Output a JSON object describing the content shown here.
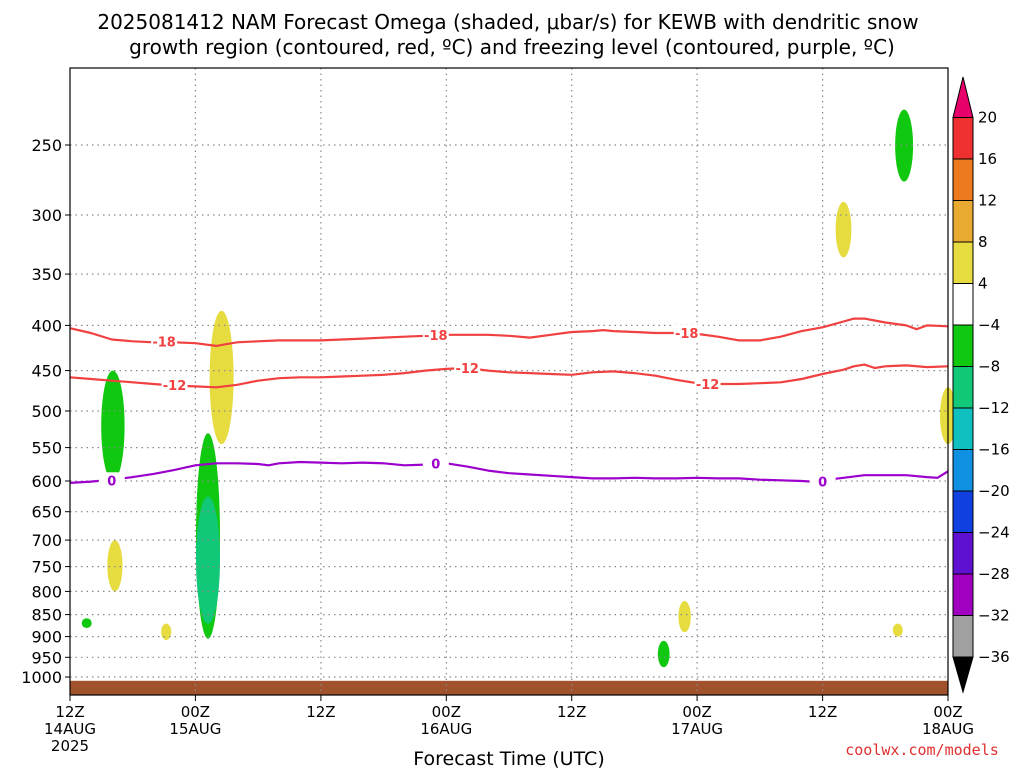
{
  "title_line1": "2025081412 NAM Forecast Omega (shaded, μbar/s) for KEWB with dendritic snow",
  "title_line2": "growth region (contoured, red, ºC) and freezing level (contoured, purple, ºC)",
  "credit": "coolwx.com/models",
  "chart_data": {
    "type": "contour",
    "title": "2025081412 NAM Forecast Omega (shaded, μbar/s) for KEWB with dendritic snow growth region (contoured, red, ºC) and freezing level (contoured, purple, ºC)",
    "xlabel": "Forecast Time (UTC)",
    "ylabel": "",
    "x_unit": "forecast hour",
    "xlim": [
      0,
      84
    ],
    "x_ticks": [
      {
        "x": 0,
        "lines": [
          "12Z",
          "14AUG",
          "2025"
        ]
      },
      {
        "x": 12,
        "lines": [
          "00Z",
          "15AUG"
        ]
      },
      {
        "x": 24,
        "lines": [
          "12Z"
        ]
      },
      {
        "x": 36,
        "lines": [
          "00Z",
          "16AUG"
        ]
      },
      {
        "x": 48,
        "lines": [
          "12Z"
        ]
      },
      {
        "x": 60,
        "lines": [
          "00Z",
          "17AUG"
        ]
      },
      {
        "x": 72,
        "lines": [
          "12Z"
        ]
      },
      {
        "x": 84,
        "lines": [
          "00Z",
          "18AUG"
        ]
      }
    ],
    "y_unit": "hPa",
    "y_scale": "log-pressure",
    "ylim": [
      1040,
      200
    ],
    "y_ticks": [
      250,
      300,
      350,
      400,
      450,
      500,
      550,
      600,
      650,
      700,
      750,
      800,
      850,
      900,
      950,
      1000
    ],
    "grid": true,
    "colorbar": {
      "label_values": [
        20,
        16,
        12,
        8,
        4,
        -4,
        -8,
        -12,
        -16,
        -20,
        -24,
        -28,
        -32,
        -36
      ],
      "colors": [
        "#e8006a",
        "#ee3030",
        "#ee7a20",
        "#e8aa30",
        "#e6dc40",
        "#ffffff",
        "#10c810",
        "#10c878",
        "#10c0c0",
        "#1090e0",
        "#1040e0",
        "#6010d0",
        "#a000c0",
        "#a0a0a0",
        "#000000"
      ]
    },
    "contours": [
      {
        "name": "-18 ºC (dendritic growth)",
        "color": "#f04040",
        "value": -18,
        "points": [
          [
            0,
            403
          ],
          [
            2,
            408
          ],
          [
            4,
            415
          ],
          [
            6,
            417
          ],
          [
            8,
            418
          ],
          [
            10,
            418
          ],
          [
            12,
            419
          ],
          [
            14,
            422
          ],
          [
            15,
            420
          ],
          [
            16,
            418
          ],
          [
            18,
            417
          ],
          [
            20,
            416
          ],
          [
            22,
            416
          ],
          [
            24,
            416
          ],
          [
            26,
            415
          ],
          [
            28,
            414
          ],
          [
            30,
            413
          ],
          [
            32,
            412
          ],
          [
            34,
            411
          ],
          [
            36,
            410
          ],
          [
            38,
            410
          ],
          [
            40,
            410
          ],
          [
            42,
            411
          ],
          [
            44,
            413
          ],
          [
            46,
            410
          ],
          [
            48,
            407
          ],
          [
            50,
            406
          ],
          [
            51,
            405
          ],
          [
            52,
            406
          ],
          [
            54,
            407
          ],
          [
            56,
            408
          ],
          [
            58,
            408
          ],
          [
            60,
            409
          ],
          [
            62,
            412
          ],
          [
            64,
            416
          ],
          [
            66,
            416
          ],
          [
            68,
            412
          ],
          [
            70,
            406
          ],
          [
            72,
            402
          ],
          [
            74,
            396
          ],
          [
            75,
            393
          ],
          [
            76,
            393
          ],
          [
            77,
            395
          ],
          [
            78,
            397
          ],
          [
            80,
            400
          ],
          [
            81,
            404
          ],
          [
            82,
            400
          ],
          [
            84,
            401
          ]
        ],
        "labels": [
          [
            9,
            417
          ],
          [
            35,
            410
          ],
          [
            59,
            408
          ]
        ]
      },
      {
        "name": "-12 ºC (dendritic growth)",
        "color": "#f04040",
        "value": -12,
        "points": [
          [
            0,
            458
          ],
          [
            2,
            460
          ],
          [
            4,
            462
          ],
          [
            6,
            464
          ],
          [
            8,
            466
          ],
          [
            10,
            468
          ],
          [
            12,
            469
          ],
          [
            14,
            470
          ],
          [
            16,
            467
          ],
          [
            18,
            462
          ],
          [
            20,
            459
          ],
          [
            22,
            458
          ],
          [
            24,
            458
          ],
          [
            26,
            457
          ],
          [
            28,
            456
          ],
          [
            30,
            455
          ],
          [
            32,
            453
          ],
          [
            34,
            450
          ],
          [
            36,
            448
          ],
          [
            38,
            447
          ],
          [
            40,
            450
          ],
          [
            42,
            452
          ],
          [
            44,
            453
          ],
          [
            46,
            454
          ],
          [
            48,
            455
          ],
          [
            50,
            452
          ],
          [
            52,
            451
          ],
          [
            54,
            453
          ],
          [
            56,
            456
          ],
          [
            58,
            461
          ],
          [
            60,
            465
          ],
          [
            62,
            466
          ],
          [
            64,
            466
          ],
          [
            66,
            465
          ],
          [
            68,
            464
          ],
          [
            70,
            460
          ],
          [
            72,
            454
          ],
          [
            74,
            449
          ],
          [
            75,
            445
          ],
          [
            76,
            443
          ],
          [
            77,
            447
          ],
          [
            78,
            445
          ],
          [
            80,
            444
          ],
          [
            82,
            446
          ],
          [
            84,
            445
          ]
        ],
        "labels": [
          [
            10,
            467
          ],
          [
            38,
            447
          ],
          [
            61,
            466
          ]
        ]
      },
      {
        "name": "0 ºC (freezing level)",
        "color": "#9c00cc",
        "value": 0,
        "points": [
          [
            0,
            603
          ],
          [
            2,
            601
          ],
          [
            4,
            598
          ],
          [
            6,
            594
          ],
          [
            8,
            589
          ],
          [
            10,
            583
          ],
          [
            12,
            576
          ],
          [
            14,
            573
          ],
          [
            16,
            573
          ],
          [
            18,
            574
          ],
          [
            19,
            576
          ],
          [
            20,
            573
          ],
          [
            22,
            571
          ],
          [
            24,
            572
          ],
          [
            26,
            573
          ],
          [
            28,
            572
          ],
          [
            30,
            573
          ],
          [
            32,
            576
          ],
          [
            34,
            575
          ],
          [
            36,
            573
          ],
          [
            38,
            578
          ],
          [
            40,
            584
          ],
          [
            42,
            588
          ],
          [
            44,
            590
          ],
          [
            46,
            592
          ],
          [
            48,
            594
          ],
          [
            50,
            596
          ],
          [
            52,
            596
          ],
          [
            54,
            595
          ],
          [
            56,
            596
          ],
          [
            58,
            596
          ],
          [
            60,
            595
          ],
          [
            62,
            596
          ],
          [
            64,
            596
          ],
          [
            66,
            598
          ],
          [
            68,
            599
          ],
          [
            70,
            600
          ],
          [
            71,
            601
          ],
          [
            72,
            599
          ],
          [
            74,
            595
          ],
          [
            76,
            591
          ],
          [
            78,
            591
          ],
          [
            80,
            591
          ],
          [
            82,
            594
          ],
          [
            83,
            595
          ],
          [
            84,
            585
          ]
        ],
        "labels": [
          [
            4,
            599
          ],
          [
            35,
            573
          ],
          [
            72,
            601
          ]
        ]
      }
    ],
    "shaded": [
      {
        "bin": "-8 to -4",
        "color": "#10c810",
        "x": 4.1,
        "p_top": 450,
        "p_bottom": 600
      },
      {
        "bin": "4 to 8",
        "color": "#e6dc40",
        "x": 4.3,
        "p_top": 700,
        "p_bottom": 800
      },
      {
        "bin": "-8 to -4",
        "color": "#10c810",
        "x": 1.6,
        "p_top": 858,
        "p_bottom": 880
      },
      {
        "bin": "4 to 8",
        "color": "#e6dc40",
        "x": 9.2,
        "p_top": 870,
        "p_bottom": 908
      },
      {
        "bin": "4 to 8",
        "color": "#e6dc40",
        "x": 14.5,
        "p_top": 385,
        "p_bottom": 545
      },
      {
        "bin": "-8 to -4",
        "color": "#10c810",
        "x": 13.2,
        "p_top": 530,
        "p_bottom": 905
      },
      {
        "bin": "-12 to -8",
        "color": "#10c878",
        "x": 13.2,
        "p_top": 625,
        "p_bottom": 870
      },
      {
        "bin": "-8 to -4",
        "color": "#10c810",
        "x": 56.8,
        "p_top": 910,
        "p_bottom": 975
      },
      {
        "bin": "4 to 8",
        "color": "#e6dc40",
        "x": 58.8,
        "p_top": 820,
        "p_bottom": 890
      },
      {
        "bin": "4 to 8",
        "color": "#e6dc40",
        "x": 74.0,
        "p_top": 290,
        "p_bottom": 335
      },
      {
        "bin": "-8 to -4",
        "color": "#10c810",
        "x": 79.8,
        "p_top": 228,
        "p_bottom": 275
      },
      {
        "bin": "4 to 8",
        "color": "#e6dc40",
        "x": 79.2,
        "p_top": 870,
        "p_bottom": 900
      },
      {
        "bin": "4 to 8",
        "color": "#e6dc40",
        "x": 84.0,
        "p_top": 470,
        "p_bottom": 545
      }
    ],
    "terrain": {
      "color": "#a0522d",
      "top_p": 1010
    }
  }
}
